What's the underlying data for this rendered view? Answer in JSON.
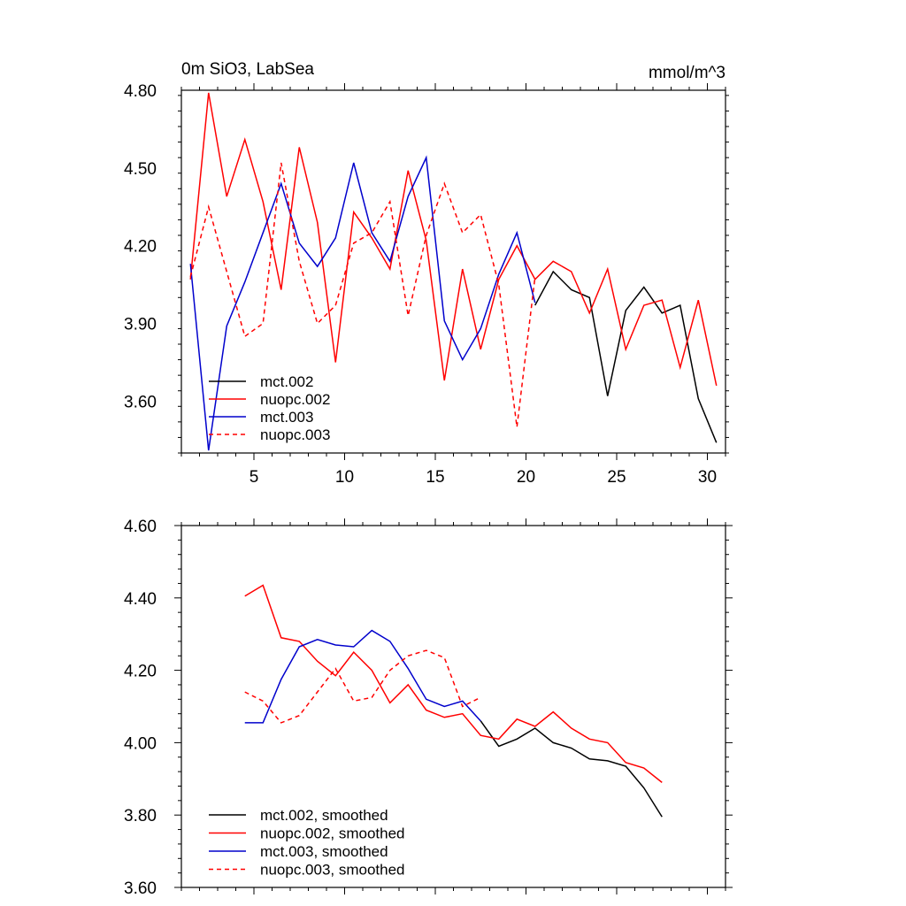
{
  "chart_data": [
    {
      "type": "line",
      "title": "0m SiO3, LabSea",
      "units": "mmol/m^3",
      "xlim": [
        1,
        31
      ],
      "ylim": [
        3.4,
        4.8
      ],
      "xticks": [
        5,
        10,
        15,
        20,
        25,
        30
      ],
      "yticks": [
        3.6,
        3.9,
        4.2,
        4.5,
        4.8
      ],
      "yticklabels": [
        "3.60",
        "3.90",
        "4.20",
        "4.50",
        "4.80"
      ],
      "grid": false,
      "legend_position": "bottom-left",
      "series": [
        {
          "name": "mct.002",
          "color": "#000000",
          "dash": "solid",
          "x": [
            20.5,
            21.5,
            22.5,
            23.5,
            24.5,
            25.5,
            26.5,
            27.5,
            28.5,
            29.5,
            30.5
          ],
          "y": [
            3.97,
            4.1,
            4.03,
            4.0,
            3.62,
            3.95,
            4.04,
            3.94,
            3.97,
            3.61,
            3.44
          ]
        },
        {
          "name": "nuopc.002",
          "color": "#ff0000",
          "dash": "solid",
          "x": [
            1.5,
            2.5,
            3.5,
            4.5,
            5.5,
            6.5,
            7.5,
            8.5,
            9.5,
            10.5,
            11.5,
            12.5,
            13.5,
            14.5,
            15.5,
            16.5,
            17.5,
            18.5,
            19.5,
            20.5,
            21.5,
            22.5,
            23.5,
            24.5,
            25.5,
            26.5,
            27.5,
            28.5,
            29.5,
            30.5
          ],
          "y": [
            4.07,
            4.79,
            4.39,
            4.61,
            4.37,
            4.03,
            4.58,
            4.29,
            3.75,
            4.33,
            4.23,
            4.11,
            4.49,
            4.22,
            3.68,
            4.11,
            3.8,
            4.07,
            4.2,
            4.07,
            4.14,
            4.1,
            3.94,
            4.11,
            3.8,
            3.97,
            3.99,
            3.73,
            3.99,
            3.66
          ]
        },
        {
          "name": "mct.003",
          "color": "#0000cc",
          "dash": "solid",
          "x": [
            1.5,
            2.5,
            3.5,
            4.5,
            5.5,
            6.5,
            7.5,
            8.5,
            9.5,
            10.5,
            11.5,
            12.5,
            13.5,
            14.5,
            15.5,
            16.5,
            17.5,
            18.5,
            19.5,
            20.5
          ],
          "y": [
            4.13,
            3.41,
            3.89,
            4.06,
            4.25,
            4.44,
            4.21,
            4.12,
            4.23,
            4.52,
            4.25,
            4.14,
            4.39,
            4.54,
            3.91,
            3.76,
            3.88,
            4.09,
            4.25,
            3.98
          ]
        },
        {
          "name": "nuopc.003",
          "color": "#ff0000",
          "dash": "dashed",
          "x": [
            1.5,
            2.5,
            3.5,
            4.5,
            5.5,
            6.5,
            7.5,
            8.5,
            9.5,
            10.5,
            11.5,
            12.5,
            13.5,
            14.5,
            15.5,
            16.5,
            17.5,
            18.5,
            19.5,
            20.5
          ],
          "y": [
            4.08,
            4.35,
            4.1,
            3.85,
            3.9,
            4.52,
            4.14,
            3.9,
            3.97,
            4.21,
            4.25,
            4.37,
            3.93,
            4.24,
            4.44,
            4.25,
            4.32,
            4.05,
            3.5,
            4.08
          ]
        }
      ]
    },
    {
      "type": "line",
      "title": "",
      "xlim": [
        1,
        31
      ],
      "ylim": [
        3.6,
        4.6
      ],
      "xticks": [
        5,
        10,
        15,
        20,
        25,
        30
      ],
      "yticks": [
        3.6,
        3.8,
        4.0,
        4.2,
        4.4,
        4.6
      ],
      "yticklabels": [
        "3.60",
        "3.80",
        "4.00",
        "4.20",
        "4.40",
        "4.60"
      ],
      "grid": false,
      "legend_position": "bottom-left",
      "series": [
        {
          "name": "mct.002, smoothed",
          "color": "#000000",
          "dash": "solid",
          "x": [
            17.5,
            18.5,
            19.5,
            20.5,
            21.5,
            22.5,
            23.5,
            24.5,
            25.5,
            26.5,
            27.5
          ],
          "y": [
            4.06,
            3.99,
            4.01,
            4.04,
            4.0,
            3.985,
            3.955,
            3.95,
            3.935,
            3.875,
            3.795
          ]
        },
        {
          "name": "nuopc.002, smoothed",
          "color": "#ff0000",
          "dash": "solid",
          "x": [
            4.5,
            5.5,
            6.5,
            7.5,
            8.5,
            9.5,
            10.5,
            11.5,
            12.5,
            13.5,
            14.5,
            15.5,
            16.5,
            17.5,
            18.5,
            19.5,
            20.5,
            21.5,
            22.5,
            23.5,
            24.5,
            25.5,
            26.5,
            27.5
          ],
          "y": [
            4.405,
            4.435,
            4.29,
            4.28,
            4.225,
            4.185,
            4.25,
            4.2,
            4.11,
            4.16,
            4.09,
            4.07,
            4.08,
            4.02,
            4.01,
            4.065,
            4.045,
            4.085,
            4.04,
            4.01,
            4.0,
            3.945,
            3.93,
            3.89
          ]
        },
        {
          "name": "mct.003, smoothed",
          "color": "#0000cc",
          "dash": "solid",
          "x": [
            4.5,
            5.5,
            6.5,
            7.5,
            8.5,
            9.5,
            10.5,
            11.5,
            12.5,
            13.5,
            14.5,
            15.5,
            16.5,
            17.5
          ],
          "y": [
            4.055,
            4.055,
            4.175,
            4.265,
            4.285,
            4.27,
            4.265,
            4.31,
            4.28,
            4.205,
            4.12,
            4.1,
            4.115,
            4.06
          ]
        },
        {
          "name": "nuopc.003, smoothed",
          "color": "#ff0000",
          "dash": "dashed",
          "x": [
            4.5,
            5.5,
            6.5,
            7.5,
            8.5,
            9.5,
            10.5,
            11.5,
            12.5,
            13.5,
            14.5,
            15.5,
            16.5,
            17.5
          ],
          "y": [
            4.14,
            4.115,
            4.055,
            4.075,
            4.14,
            4.205,
            4.115,
            4.125,
            4.2,
            4.24,
            4.255,
            4.235,
            4.1,
            4.125
          ]
        }
      ]
    }
  ]
}
